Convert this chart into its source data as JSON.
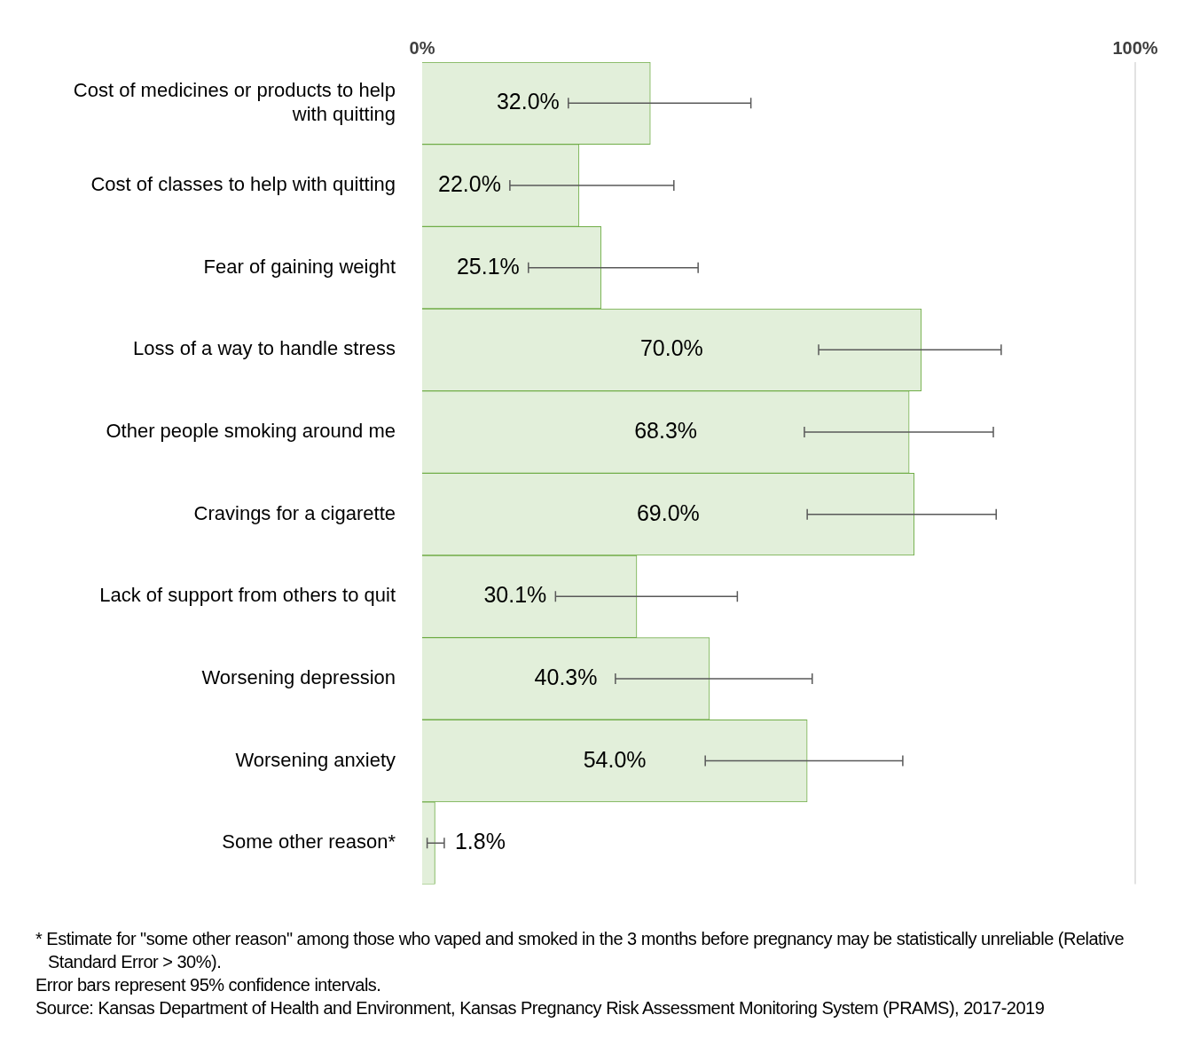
{
  "chart_data": {
    "type": "bar",
    "orientation": "horizontal",
    "categories": [
      "Cost of medicines or products to help with quitting",
      "Cost of classes to help with quitting",
      "Fear of gaining weight",
      "Loss of a way to handle stress",
      "Other people smoking around me",
      "Cravings for a cigarette",
      "Lack of support from others to quit",
      "Worsening depression",
      "Worsening anxiety",
      "Some other reason*"
    ],
    "values": [
      32.0,
      22.0,
      25.1,
      70.0,
      68.3,
      69.0,
      30.1,
      40.3,
      54.0,
      1.8
    ],
    "value_labels": [
      "32.0%",
      "22.0%",
      "25.1%",
      "70.0%",
      "68.3%",
      "69.0%",
      "30.1%",
      "40.3%",
      "54.0%",
      "1.8%"
    ],
    "errors": [
      [
        20.5,
        46.1
      ],
      [
        12.3,
        35.3
      ],
      [
        14.9,
        38.7
      ],
      [
        55.6,
        81.2
      ],
      [
        53.6,
        80.1
      ],
      [
        54.0,
        80.5
      ],
      [
        18.7,
        44.2
      ],
      [
        27.1,
        54.7
      ],
      [
        39.7,
        67.4
      ],
      [
        0.7,
        3.1
      ]
    ],
    "color": "#e2efda",
    "xlim": [
      0,
      100
    ],
    "xticks": [
      {
        "value": 0,
        "label": "0%"
      },
      {
        "value": 100,
        "label": "100%"
      }
    ],
    "ref_lines": [
      {
        "axis": "x",
        "value": 100,
        "color": "#d9d9d9"
      }
    ],
    "legend": false,
    "annotations": [
      "* Estimate for \"some other reason\" among those who vaped and smoked in the 3 months before pregnancy may be statistically unreliable (Relative Standard Error > 30%).",
      "Error bars represent 95% confidence intervals.",
      "Source: Kansas Department of Health and Environment, Kansas Pregnancy Risk Assessment Monitoring System (PRAMS),  2017-2019"
    ]
  }
}
